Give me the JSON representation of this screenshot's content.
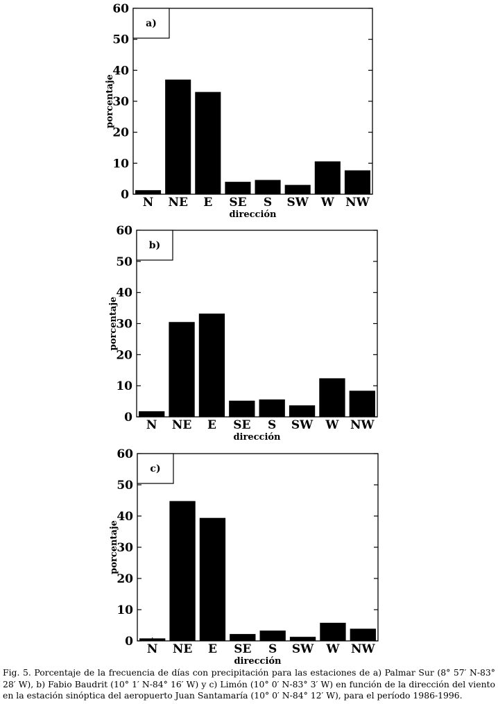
{
  "chart_data": [
    {
      "type": "bar",
      "panel_label": "a)",
      "categories": [
        "N",
        "NE",
        "E",
        "SE",
        "S",
        "SW",
        "W",
        "NW"
      ],
      "values": [
        1.3,
        37.0,
        33.0,
        4.0,
        4.6,
        3.0,
        10.6,
        7.7
      ],
      "xlabel": "dirección",
      "ylabel": "porcentaje",
      "ylim": [
        0,
        60
      ],
      "yticks": [
        "0",
        "10",
        "20",
        "30",
        "40",
        "50",
        "60"
      ]
    },
    {
      "type": "bar",
      "panel_label": "b)",
      "categories": [
        "N",
        "NE",
        "E",
        "SE",
        "S",
        "SW",
        "W",
        "NW"
      ],
      "values": [
        1.8,
        30.5,
        33.2,
        5.2,
        5.6,
        3.7,
        12.4,
        8.4
      ],
      "xlabel": "dirección",
      "ylabel": "porcentaje",
      "ylim": [
        0,
        60
      ],
      "yticks": [
        "0",
        "10",
        "20",
        "30",
        "40",
        "50",
        "60"
      ]
    },
    {
      "type": "bar",
      "panel_label": "c)",
      "categories": [
        "N",
        "NE",
        "E",
        "SE",
        "S",
        "SW",
        "W",
        "NW"
      ],
      "values": [
        0.8,
        44.8,
        39.4,
        2.2,
        3.3,
        1.3,
        5.8,
        3.9
      ],
      "xlabel": "dirección",
      "ylabel": "porcentaje",
      "ylim": [
        0,
        60
      ],
      "yticks": [
        "0",
        "10",
        "20",
        "30",
        "40",
        "50",
        "60"
      ]
    }
  ],
  "caption": "Fig. 5. Porcentaje de la frecuencia de días con precipitación para las estaciones de a) Palmar Sur (8° 57′ N-83° 28′ W), b) Fabio Baudrit (10° 1′ N-84° 16′ W) y c) Limón (10° 0′ N-83° 3′ W) en función de la dirección del viento en la estación sinóptica del aeropuerto Juan Santamaría (10° 0′ N-84° 12′ W), para el período 1986-1996."
}
